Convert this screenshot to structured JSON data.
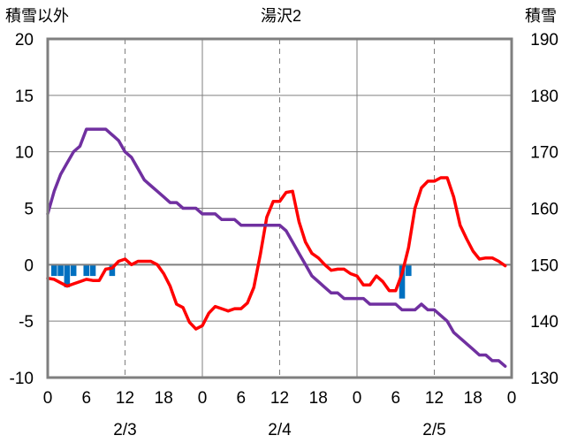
{
  "chart_data": {
    "type": "line",
    "title": "湯沢2",
    "left_axis_title": "積雪以外",
    "right_axis_title": "積雪",
    "left_ylim": [
      -10,
      20
    ],
    "left_yticks": [
      "20",
      "15",
      "10",
      "5",
      "0",
      "-5",
      "-10"
    ],
    "right_ylim": [
      130,
      190
    ],
    "right_yticks": [
      "190",
      "180",
      "170",
      "160",
      "150",
      "140",
      "130"
    ],
    "x_tick_labels": [
      "0",
      "6",
      "12",
      "18",
      "0",
      "6",
      "12",
      "18",
      "0",
      "6",
      "12",
      "18",
      "0"
    ],
    "x_range_hours": [
      0,
      72
    ],
    "date_labels": [
      "2/3",
      "2/4",
      "2/5"
    ],
    "colors": {
      "temperature": "#ff0000",
      "snow_depth": "#7030a0",
      "precipitation": "#0070c0",
      "zero_line": "#7f7f7f",
      "frame": "#7f7f7f",
      "grid": "#7f7f7f"
    },
    "series": [
      {
        "id": "temperature",
        "axis": "left",
        "style": "line",
        "hours": [
          0,
          1,
          2,
          3,
          4,
          5,
          6,
          7,
          8,
          9,
          10,
          11,
          12,
          13,
          14,
          15,
          16,
          17,
          18,
          19,
          20,
          21,
          22,
          23,
          24,
          25,
          26,
          27,
          28,
          29,
          30,
          31,
          32,
          33,
          34,
          35,
          36,
          37,
          38,
          39,
          40,
          41,
          42,
          43,
          44,
          45,
          46,
          47,
          48,
          49,
          50,
          51,
          52,
          53,
          54,
          55,
          56,
          57,
          58,
          59,
          60,
          61,
          62,
          63,
          64,
          65,
          66,
          67,
          68,
          69,
          70,
          71
        ],
        "values": [
          -1.2,
          -1.3,
          -1.6,
          -1.9,
          -1.7,
          -1.5,
          -1.3,
          -1.4,
          -1.4,
          -0.4,
          -0.3,
          0.3,
          0.5,
          0.0,
          0.3,
          0.3,
          0.3,
          0.0,
          -0.8,
          -1.9,
          -3.5,
          -3.8,
          -5.1,
          -5.7,
          -5.4,
          -4.3,
          -3.7,
          -3.9,
          -4.1,
          -3.9,
          -3.9,
          -3.4,
          -2.0,
          0.9,
          4.2,
          5.6,
          5.6,
          6.4,
          6.5,
          3.8,
          2.0,
          1.0,
          0.6,
          0.0,
          -0.5,
          -0.4,
          -0.4,
          -0.8,
          -1.0,
          -1.8,
          -1.8,
          -1.0,
          -1.5,
          -2.3,
          -2.3,
          -0.8,
          1.5,
          5.0,
          6.8,
          7.4,
          7.4,
          7.7,
          7.7,
          6.0,
          3.5,
          2.3,
          1.2,
          0.5,
          0.6,
          0.6,
          0.3,
          -0.1
        ]
      },
      {
        "id": "snow_depth",
        "axis": "right",
        "style": "line",
        "hours": [
          0,
          1,
          2,
          3,
          4,
          5,
          6,
          7,
          8,
          9,
          10,
          11,
          12,
          13,
          14,
          15,
          16,
          17,
          18,
          19,
          20,
          21,
          22,
          23,
          24,
          25,
          26,
          27,
          28,
          29,
          30,
          31,
          32,
          33,
          34,
          35,
          36,
          37,
          38,
          39,
          40,
          41,
          42,
          43,
          44,
          45,
          46,
          47,
          48,
          49,
          50,
          51,
          52,
          53,
          54,
          55,
          56,
          57,
          58,
          59,
          60,
          61,
          62,
          63,
          64,
          65,
          66,
          67,
          68,
          69,
          70,
          71
        ],
        "values": [
          159,
          163,
          166,
          168,
          170,
          171,
          174,
          174,
          174,
          174,
          173,
          172,
          170,
          169,
          167,
          165,
          164,
          163,
          162,
          161,
          161,
          160,
          160,
          160,
          159,
          159,
          159,
          158,
          158,
          158,
          157,
          157,
          157,
          157,
          157,
          157,
          157,
          156,
          154,
          152,
          150,
          148,
          147,
          146,
          145,
          145,
          144,
          144,
          144,
          144,
          143,
          143,
          143,
          143,
          143,
          142,
          142,
          142,
          143,
          142,
          142,
          141,
          140,
          138,
          137,
          136,
          135,
          134,
          134,
          133,
          133,
          132
        ]
      },
      {
        "id": "precipitation",
        "axis": "left",
        "style": "bar",
        "hours": [
          1,
          2,
          3,
          4,
          6,
          7,
          10,
          55,
          56
        ],
        "values": [
          -1.0,
          -1.0,
          -2.0,
          -1.0,
          -1.0,
          -1.0,
          -1.0,
          -3.0,
          -1.0
        ]
      }
    ]
  }
}
